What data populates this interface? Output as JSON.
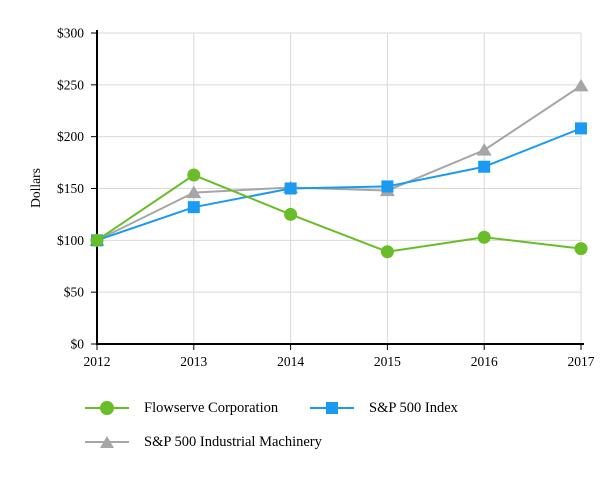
{
  "chart_data": {
    "type": "line",
    "title": "",
    "xlabel": "",
    "ylabel": "Dollars",
    "x": [
      "2012",
      "2013",
      "2014",
      "2015",
      "2016",
      "2017"
    ],
    "ylim": [
      0,
      300
    ],
    "y_tick_values": [
      0,
      50,
      100,
      150,
      200,
      250,
      300
    ],
    "y_tick_labels": [
      "$0",
      "$50",
      "$100",
      "$150",
      "$200",
      "$250",
      "$300"
    ],
    "grid": true,
    "legend_position": "bottom",
    "axis_color": "#000000",
    "gridline_color": "#d9d9d9",
    "series": [
      {
        "name": "Flowserve Corporation",
        "marker": "circle",
        "color": "#69bd28",
        "values": [
          100,
          163,
          125,
          89,
          103,
          92
        ]
      },
      {
        "name": "S&P 500 Index",
        "marker": "square",
        "color": "#1a9af0",
        "values": [
          100,
          132,
          150,
          152,
          171,
          208
        ]
      },
      {
        "name": "S&P 500 Industrial Machinery",
        "marker": "triangle",
        "color": "#a6a6a6",
        "values": [
          100,
          146,
          151,
          148,
          187,
          249
        ]
      }
    ]
  }
}
